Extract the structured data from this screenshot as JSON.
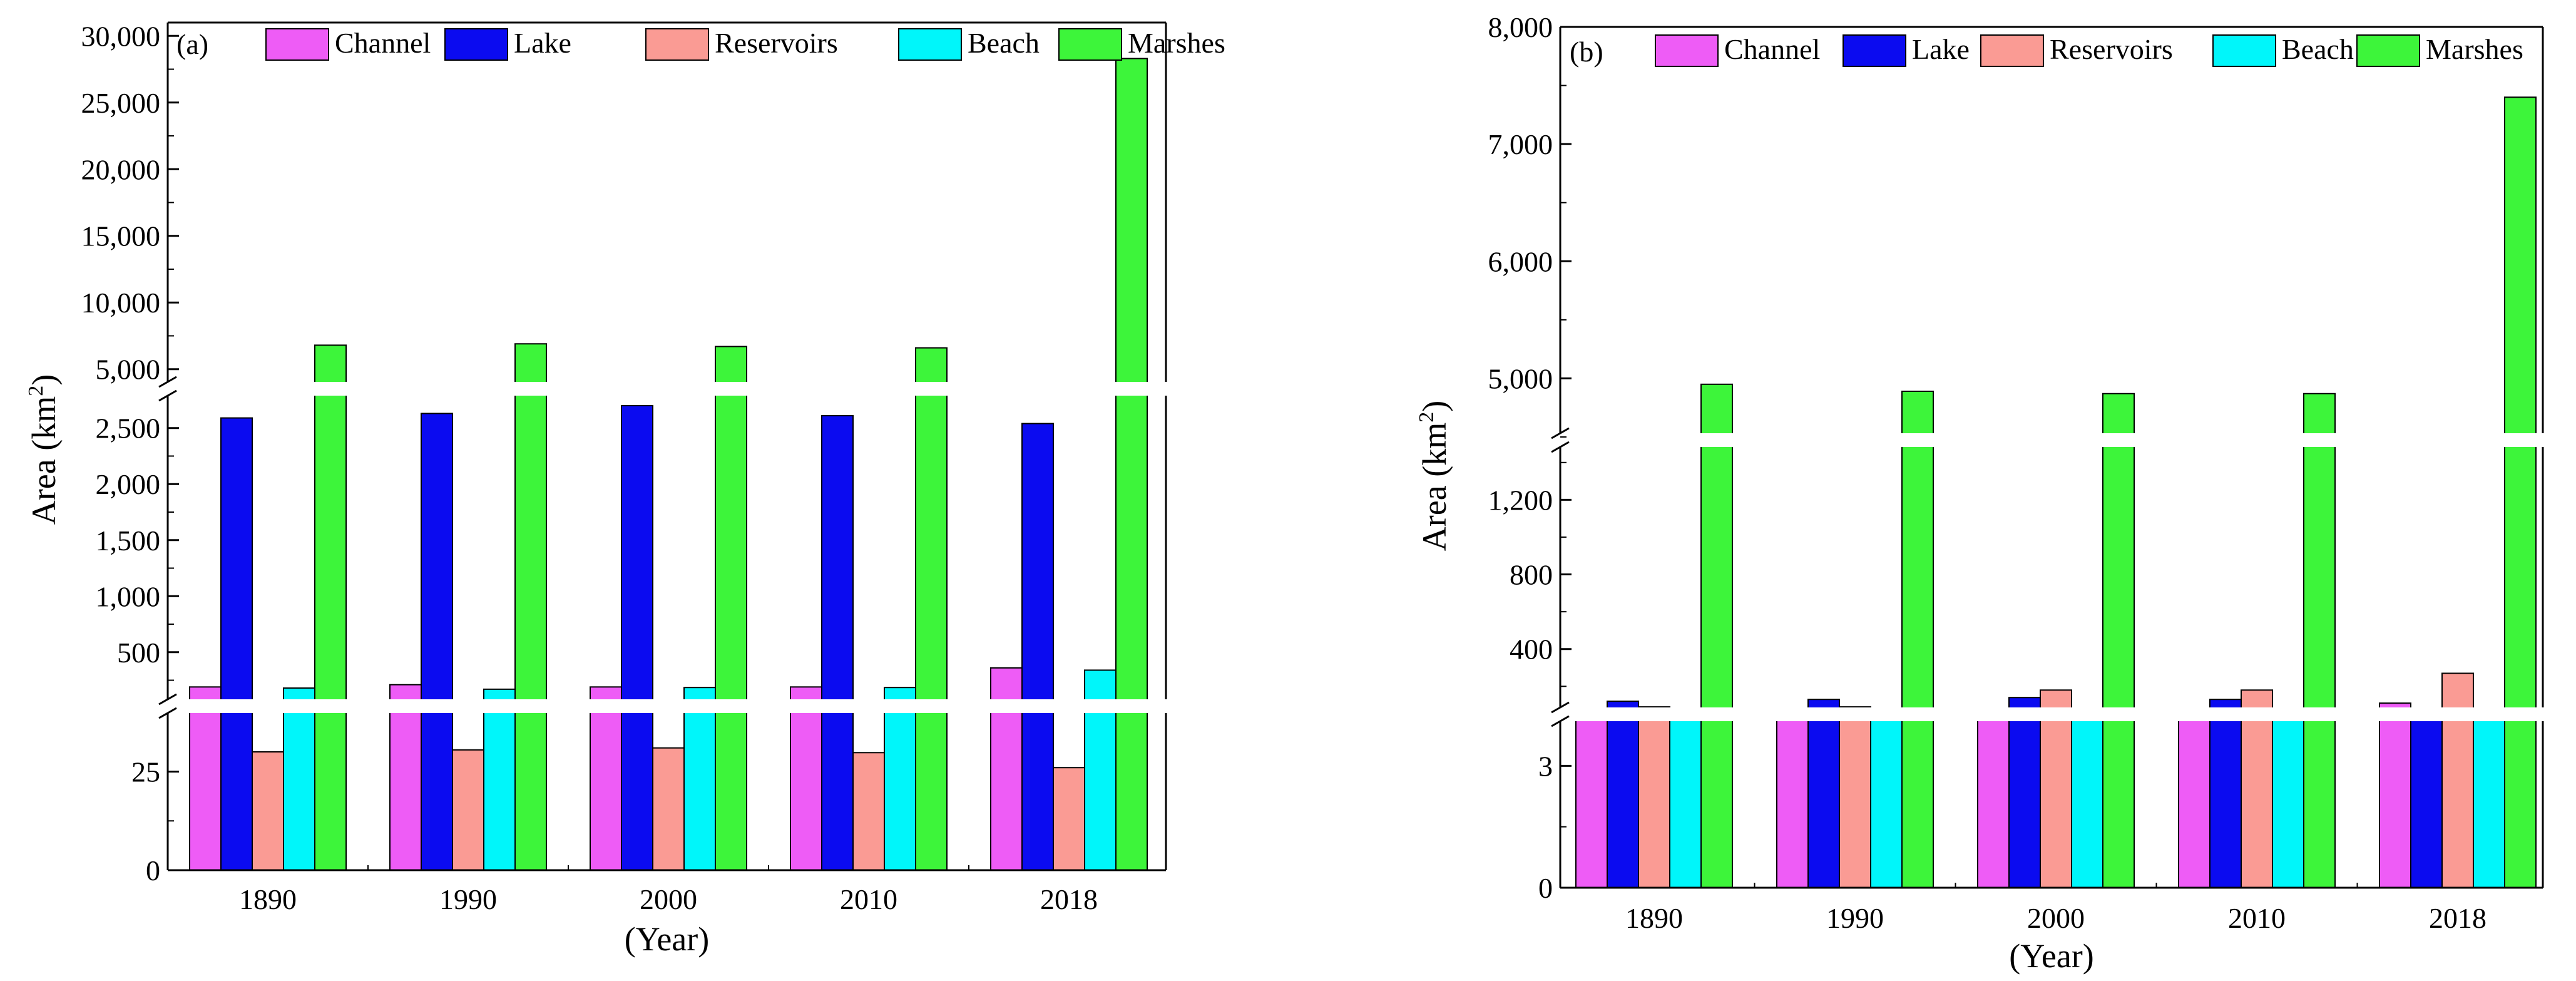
{
  "colors": {
    "Channel": "#ee5cf6",
    "Lake": "#0b0bf0",
    "Reservoirs": "#fa9b94",
    "Beach": "#00f6fa",
    "Marshes": "#3df53a"
  },
  "chart_data": [
    {
      "type": "bar",
      "panel_label": "(a)",
      "xlabel": "(Year)",
      "ylabel": "Area (km²)",
      "ylabel_parts": {
        "main": "Area (km",
        "sup": "2",
        "close": ")"
      },
      "categories": [
        "1890",
        "1990",
        "2000",
        "2010",
        "2018"
      ],
      "series": [
        {
          "name": "Channel",
          "values": [
            190,
            210,
            190,
            190,
            360
          ]
        },
        {
          "name": "Lake",
          "values": [
            2590,
            2630,
            2700,
            2610,
            2540
          ]
        },
        {
          "name": "Reservoirs",
          "values": [
            30,
            30.5,
            31,
            29.8,
            26
          ]
        },
        {
          "name": "Beach",
          "values": [
            180,
            170,
            185,
            185,
            340
          ]
        },
        {
          "name": "Marshes",
          "values": [
            6800,
            6900,
            6700,
            6600,
            28300
          ]
        }
      ],
      "axis_segments": [
        {
          "range": [
            0,
            40
          ],
          "ticks": [
            0,
            25
          ],
          "tick_labels": [
            "0",
            "25"
          ]
        },
        {
          "range": [
            80,
            2800
          ],
          "ticks": [
            500,
            1000,
            1500,
            2000,
            2500
          ],
          "tick_labels": [
            "500",
            "1,000",
            "1,500",
            "2,000",
            "2,500"
          ]
        },
        {
          "range": [
            4000,
            31000
          ],
          "ticks": [
            5000,
            10000,
            15000,
            20000,
            25000,
            30000
          ],
          "tick_labels": [
            "5,000",
            "10,000",
            "15,000",
            "20,000",
            "25,000",
            "30,000"
          ]
        }
      ],
      "legend": [
        "Channel",
        "Lake",
        "Reservoirs",
        "Beach",
        "Marshes"
      ]
    },
    {
      "type": "bar",
      "panel_label": "(b)",
      "xlabel": "(Year)",
      "ylabel": "Area (km²)",
      "ylabel_parts": {
        "main": "Area (km",
        "sup": "2",
        "close": ")"
      },
      "categories": [
        "1890",
        "1990",
        "2000",
        "2010",
        "2018"
      ],
      "series": [
        {
          "name": "Channel",
          "values": [
            60,
            20,
            60,
            60,
            110
          ]
        },
        {
          "name": "Lake",
          "values": [
            120,
            130,
            140,
            130,
            60
          ]
        },
        {
          "name": "Reservoirs",
          "values": [
            90,
            90,
            180,
            180,
            270
          ]
        },
        {
          "name": "Beach",
          "values": [
            60,
            60,
            60,
            70,
            80
          ]
        },
        {
          "name": "Marshes",
          "values": [
            4950,
            4890,
            4870,
            4870,
            7400
          ]
        }
      ],
      "axis_segments": [
        {
          "range": [
            0,
            4.3
          ],
          "ticks": [
            0,
            3
          ],
          "tick_labels": [
            "0",
            "3"
          ]
        },
        {
          "range": [
            40,
            1500
          ],
          "ticks": [
            400,
            800,
            1200
          ],
          "tick_labels": [
            "400",
            "800",
            "1,200"
          ]
        },
        {
          "range": [
            4500,
            8000
          ],
          "ticks": [
            5000,
            6000,
            7000,
            8000
          ],
          "tick_labels": [
            "5,000",
            "6,000",
            "7,000",
            "8,000"
          ]
        }
      ],
      "legend": [
        "Channel",
        "Lake",
        "Reservoirs",
        "Beach",
        "Marshes"
      ]
    }
  ]
}
